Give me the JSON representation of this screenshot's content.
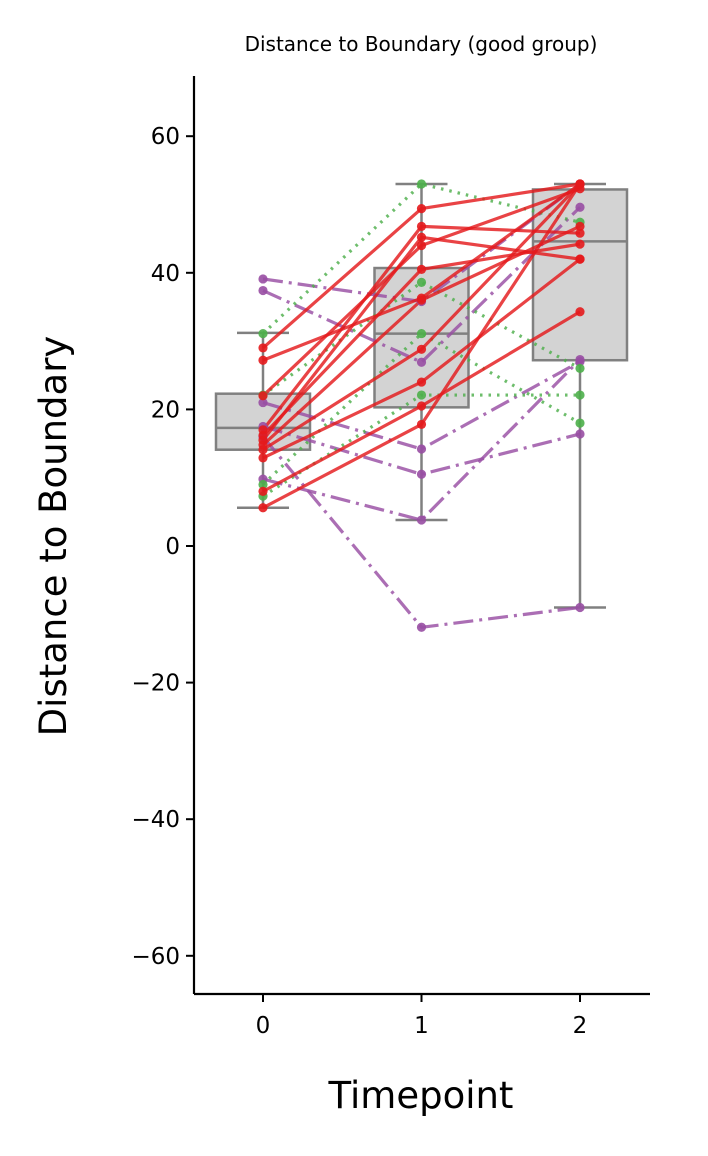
{
  "chart_data": {
    "type": "box",
    "title": "Distance to Boundary (good group)",
    "xlabel": "Timepoint",
    "ylabel": "Distance to Boundary",
    "categories": [
      "0",
      "1",
      "2"
    ],
    "ylim": [
      -65,
      68
    ],
    "xticks": [
      "0",
      "1",
      "2"
    ],
    "yticks": [
      -60,
      -40,
      -20,
      0,
      20,
      40,
      60
    ],
    "ytick_labels": [
      "−60",
      "−40",
      "−20",
      "0",
      "20",
      "40",
      "60"
    ],
    "grid": false,
    "boxes": [
      {
        "category": "0",
        "whisker_low": 5.6,
        "q1": 14.1,
        "median": 17.3,
        "q3": 22.3,
        "whisker_high": 31.2
      },
      {
        "category": "1",
        "whisker_low": 3.8,
        "q1": 20.3,
        "median": 31.1,
        "q3": 40.7,
        "whisker_high": 53.0
      },
      {
        "category": "2",
        "whisker_low": -9.0,
        "q1": 27.2,
        "median": 44.6,
        "q3": 52.2,
        "whisker_high": 53.0
      }
    ],
    "series_styles": {
      "purple": {
        "color": "#984ea3",
        "dash": "dashdot"
      },
      "green": {
        "color": "#4daf4a",
        "dash": "dotted"
      },
      "red": {
        "color": "#e41a1c",
        "dash": "solid"
      }
    },
    "series": [
      {
        "group": "purple",
        "values": [
          39.1,
          35.8,
          53.0
        ]
      },
      {
        "group": "purple",
        "values": [
          37.4,
          26.9,
          49.6
        ]
      },
      {
        "group": "purple",
        "values": [
          21.0,
          14.2,
          27.0
        ]
      },
      {
        "group": "purple",
        "values": [
          17.5,
          10.5,
          16.4
        ]
      },
      {
        "group": "purple",
        "values": [
          16.0,
          -11.9,
          -9.0
        ]
      },
      {
        "group": "purple",
        "values": [
          9.8,
          3.8,
          27.3
        ]
      },
      {
        "group": "green",
        "values": [
          31.1,
          53.0,
          47.4
        ]
      },
      {
        "group": "green",
        "values": [
          22.1,
          38.6,
          26.0
        ]
      },
      {
        "group": "green",
        "values": [
          9.0,
          31.1,
          18.0
        ]
      },
      {
        "group": "green",
        "values": [
          7.3,
          22.1,
          22.1
        ]
      },
      {
        "group": "red",
        "values": [
          29.0,
          49.4,
          53.0
        ]
      },
      {
        "group": "red",
        "values": [
          27.2,
          36.3,
          53.0
        ]
      },
      {
        "group": "red",
        "values": [
          22.0,
          44.0,
          52.3
        ]
      },
      {
        "group": "red",
        "values": [
          17.0,
          46.8,
          45.8
        ]
      },
      {
        "group": "red",
        "values": [
          16.2,
          40.5,
          44.2
        ]
      },
      {
        "group": "red",
        "values": [
          15.5,
          45.2,
          42.0
        ]
      },
      {
        "group": "red",
        "values": [
          14.8,
          36.0,
          46.8
        ]
      },
      {
        "group": "red",
        "values": [
          14.1,
          28.8,
          53.0
        ]
      },
      {
        "group": "red",
        "values": [
          12.9,
          24.0,
          42.0
        ]
      },
      {
        "group": "red",
        "values": [
          8.0,
          20.5,
          34.3
        ]
      },
      {
        "group": "red",
        "values": [
          5.6,
          17.8,
          53.0
        ]
      }
    ]
  }
}
